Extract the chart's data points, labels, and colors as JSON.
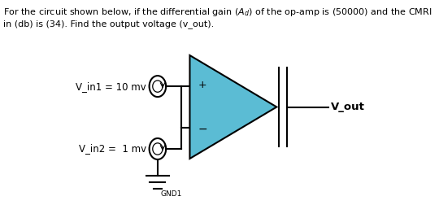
{
  "header1": "For the circuit shown below, if the differential gain ($A_d$) of the op-amp is (50000) and the CMRI",
  "header2": "in (db) is (34). Find the output voltage (v_out).",
  "v_in1_label": "V_in1 = 10 mv",
  "v_in2_label": "V_in2 =  1 mv",
  "v_out_label": "V_out",
  "gnd_label": "GND1",
  "plus_label": "+",
  "minus_label": "-",
  "bg_color": "#ffffff",
  "text_color": "#000000",
  "opamp_fill": "#5bbcd4",
  "wire_color": "#000000",
  "opamp_lw": 1.5,
  "wire_lw": 1.5,
  "header_fontsize": 8.0,
  "label_fontsize": 8.5
}
